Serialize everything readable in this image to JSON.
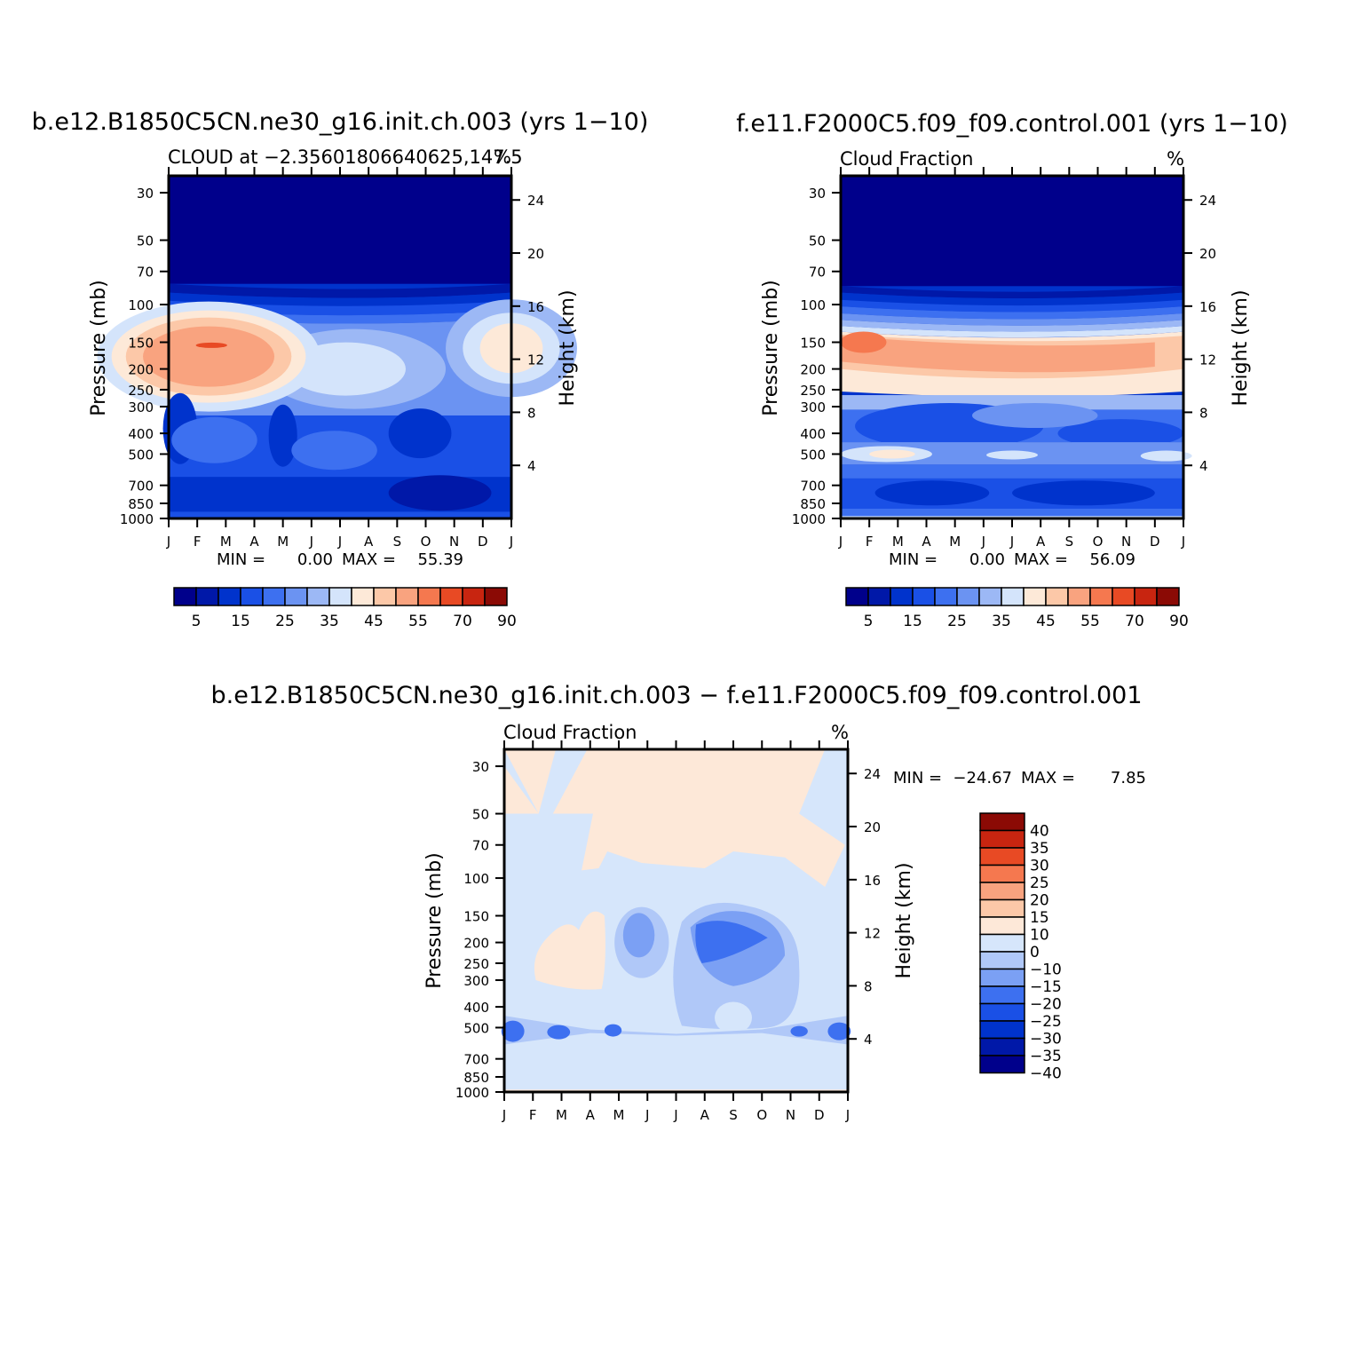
{
  "panels": [
    {
      "case": "b.e12.B1850C5CN.ne30_g16.init.ch.003 (yrs 1-10)",
      "subtitle": "CLOUD at -2.35601806640625,147.5",
      "units": "%",
      "stats": {
        "min_label": "MIN =",
        "min": "0.00",
        "max_label": "MAX =",
        "max": "55.39"
      }
    },
    {
      "case": "f.e11.F2000C5.f09_f09.control.001 (yrs 1-10)",
      "subtitle": "Cloud Fraction",
      "units": "%",
      "stats": {
        "min_label": "MIN =",
        "min": "0.00",
        "max_label": "MAX =",
        "max": "56.09"
      }
    },
    {
      "case": "b.e12.B1850C5CN.ne30_g16.init.ch.003 - f.e11.F2000C5.f09_f09.control.001",
      "subtitle": "Cloud Fraction",
      "units": "%",
      "stats": {
        "min_label": "MIN =",
        "min": "-24.67",
        "max_label": "MAX =",
        "max": "7.85"
      }
    }
  ],
  "chart_data": [
    {
      "type": "heatmap",
      "title": "b.e12.B1850C5CN.ne30_g16.init.ch.003 (yrs 1-10)",
      "subtitle": "CLOUD at -2.35601806640625,147.5",
      "xlabel": "",
      "ylabel": "Pressure (mb)",
      "ylabel_right": "Height (km)",
      "units": "%",
      "x": [
        "J",
        "F",
        "M",
        "A",
        "M",
        "J",
        "J",
        "A",
        "S",
        "O",
        "N",
        "D",
        "J"
      ],
      "y_ticks": [
        "30",
        "50",
        "70",
        "100",
        "150",
        "200",
        "250",
        "300",
        "400",
        "500",
        "700",
        "850",
        "1000"
      ],
      "y_ticks_right": [
        "24",
        "20",
        "16",
        "12",
        "8",
        "4"
      ],
      "y_scale": "log",
      "ylim": [
        1000,
        25
      ],
      "levels": [
        5,
        10,
        15,
        20,
        25,
        30,
        35,
        40,
        45,
        50,
        55,
        60,
        70,
        80,
        90
      ],
      "colorbar_labels": [
        "5",
        "15",
        "25",
        "35",
        "45",
        "55",
        "70",
        "90"
      ],
      "min": 0.0,
      "max": 55.39
    },
    {
      "type": "heatmap",
      "title": "f.e11.F2000C5.f09_f09.control.001 (yrs 1-10)",
      "subtitle": "Cloud Fraction",
      "xlabel": "",
      "ylabel": "Pressure (mb)",
      "ylabel_right": "Height (km)",
      "units": "%",
      "x": [
        "J",
        "F",
        "M",
        "A",
        "M",
        "J",
        "J",
        "A",
        "S",
        "O",
        "N",
        "D",
        "J"
      ],
      "y_ticks": [
        "30",
        "50",
        "70",
        "100",
        "150",
        "200",
        "250",
        "300",
        "400",
        "500",
        "700",
        "850",
        "1000"
      ],
      "y_ticks_right": [
        "24",
        "20",
        "16",
        "12",
        "8",
        "4"
      ],
      "y_scale": "log",
      "ylim": [
        1000,
        25
      ],
      "levels": [
        5,
        10,
        15,
        20,
        25,
        30,
        35,
        40,
        45,
        50,
        55,
        60,
        70,
        80,
        90
      ],
      "colorbar_labels": [
        "5",
        "15",
        "25",
        "35",
        "45",
        "55",
        "70",
        "90"
      ],
      "min": 0.0,
      "max": 56.09
    },
    {
      "type": "heatmap",
      "title": "b.e12.B1850C5CN.ne30_g16.init.ch.003 - f.e11.F2000C5.f09_f09.control.001",
      "subtitle": "Cloud Fraction",
      "xlabel": "",
      "ylabel": "Pressure (mb)",
      "ylabel_right": "Height (km)",
      "units": "%",
      "x": [
        "J",
        "F",
        "M",
        "A",
        "M",
        "J",
        "J",
        "A",
        "S",
        "O",
        "N",
        "D",
        "J"
      ],
      "y_ticks": [
        "30",
        "50",
        "70",
        "100",
        "150",
        "200",
        "250",
        "300",
        "400",
        "500",
        "700",
        "850",
        "1000"
      ],
      "y_ticks_right": [
        "24",
        "20",
        "16",
        "12",
        "8",
        "4"
      ],
      "y_scale": "log",
      "ylim": [
        1000,
        25
      ],
      "levels": [
        -40,
        -35,
        -30,
        -25,
        -20,
        -15,
        -10,
        0,
        10,
        15,
        20,
        25,
        30,
        35,
        40
      ],
      "colorbar_labels": [
        "40",
        "35",
        "30",
        "25",
        "20",
        "15",
        "10",
        "0",
        "-10",
        "-15",
        "-20",
        "-25",
        "-30",
        "-35",
        "-40"
      ],
      "min": -24.67,
      "max": 7.85
    }
  ],
  "colors": {
    "seq": [
      "#00008b",
      "#0018a8",
      "#0033cc",
      "#1a50e6",
      "#3d70f0",
      "#6b93f2",
      "#9cb8f5",
      "#d4e4fb",
      "#fde9d8",
      "#fcc8a8",
      "#f9a37f",
      "#f5784f",
      "#e84a24",
      "#c82510",
      "#8b0a05"
    ],
    "diff": [
      "#00008b",
      "#0018a8",
      "#0033cc",
      "#1a50e6",
      "#3d70f0",
      "#7ba0f4",
      "#b0c8f8",
      "#d6e6fb",
      "#fde8d8",
      "#fcc8a8",
      "#f9a37f",
      "#f5784f",
      "#e84a24",
      "#c82510",
      "#8b0a05"
    ]
  }
}
